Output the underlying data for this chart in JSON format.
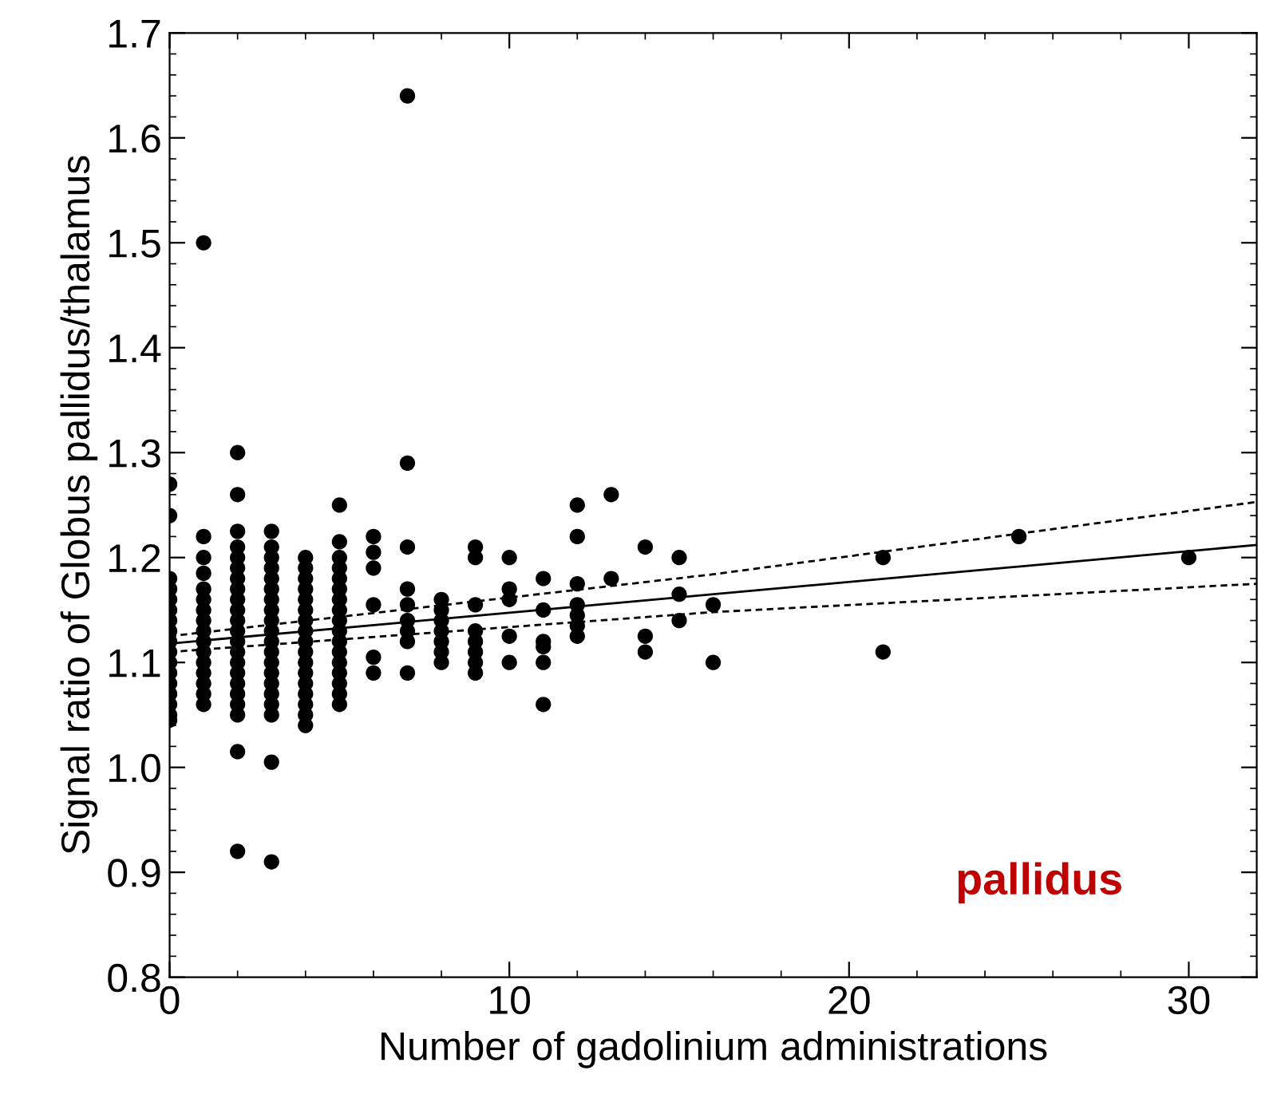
{
  "chart_data": {
    "type": "scatter",
    "xlabel": "Number of gadolinium administrations",
    "ylabel": "Signal ratio of Globus pallidus/thalamus",
    "xlim": [
      0,
      32
    ],
    "xticks": [
      0,
      10,
      20,
      30
    ],
    "ylim": [
      0.8,
      1.7
    ],
    "yticks": [
      {
        "value": 0.8,
        "label": "0.8"
      },
      {
        "value": 0.9,
        "label": "0.9"
      },
      {
        "value": 1.0,
        "label": "1.0"
      },
      {
        "value": 1.1,
        "label": "1.1"
      },
      {
        "value": 1.2,
        "label": "1.2"
      },
      {
        "value": 1.3,
        "label": "1.3"
      },
      {
        "value": 1.4,
        "label": "1.4"
      },
      {
        "value": 1.5,
        "label": "1.5"
      },
      {
        "value": 1.6,
        "label": "1.6"
      },
      {
        "value": 1.7,
        "label": "1.7"
      }
    ],
    "grid": false,
    "legend": false,
    "annotations": [
      "pallidus"
    ],
    "series": [
      {
        "color": "#000000",
        "marker": "circle",
        "x": [
          0,
          0,
          0,
          0,
          0,
          0,
          0,
          0,
          0,
          0,
          0,
          0,
          0,
          0,
          0,
          0,
          0,
          1,
          1,
          1,
          1,
          1,
          1,
          1,
          1,
          1,
          1,
          1,
          1,
          1,
          1,
          1,
          1,
          2,
          2,
          2,
          2,
          2,
          2,
          2,
          2,
          2,
          2,
          2,
          2,
          2,
          2,
          2,
          2,
          2,
          2,
          2,
          2,
          2,
          2,
          3,
          3,
          3,
          3,
          3,
          3,
          3,
          3,
          3,
          3,
          3,
          3,
          3,
          3,
          3,
          3,
          3,
          3,
          3,
          3,
          4,
          4,
          4,
          4,
          4,
          4,
          4,
          4,
          4,
          4,
          4,
          4,
          4,
          4,
          4,
          4,
          4,
          5,
          5,
          5,
          5,
          5,
          5,
          5,
          5,
          5,
          5,
          5,
          5,
          5,
          5,
          5,
          5,
          5,
          6,
          6,
          6,
          6,
          6,
          6,
          7,
          7,
          7,
          7,
          7,
          7,
          7,
          7,
          7,
          8,
          8,
          8,
          8,
          8,
          8,
          8,
          9,
          9,
          9,
          9,
          9,
          9,
          9,
          9,
          10,
          10,
          10,
          10,
          10,
          11,
          11,
          11,
          11,
          11,
          11,
          12,
          12,
          12,
          12,
          12,
          12,
          12,
          13,
          13,
          14,
          14,
          14,
          15,
          15,
          15,
          16,
          16,
          21,
          21,
          25,
          30
        ],
        "values": [
          1.27,
          1.24,
          1.18,
          1.17,
          1.16,
          1.15,
          1.14,
          1.13,
          1.12,
          1.11,
          1.1,
          1.09,
          1.08,
          1.07,
          1.06,
          1.05,
          1.045,
          1.5,
          1.22,
          1.2,
          1.185,
          1.17,
          1.16,
          1.15,
          1.14,
          1.13,
          1.12,
          1.11,
          1.1,
          1.09,
          1.08,
          1.07,
          1.06,
          1.3,
          1.26,
          1.225,
          1.21,
          1.2,
          1.19,
          1.18,
          1.17,
          1.16,
          1.15,
          1.14,
          1.13,
          1.12,
          1.11,
          1.1,
          1.09,
          1.08,
          1.07,
          1.06,
          1.05,
          1.015,
          0.92,
          1.225,
          1.21,
          1.2,
          1.19,
          1.18,
          1.17,
          1.16,
          1.15,
          1.14,
          1.13,
          1.12,
          1.11,
          1.1,
          1.09,
          1.08,
          1.07,
          1.06,
          1.05,
          1.005,
          0.91,
          1.2,
          1.19,
          1.18,
          1.17,
          1.16,
          1.15,
          1.14,
          1.13,
          1.12,
          1.11,
          1.1,
          1.09,
          1.08,
          1.07,
          1.06,
          1.05,
          1.04,
          1.25,
          1.215,
          1.2,
          1.19,
          1.18,
          1.17,
          1.16,
          1.15,
          1.14,
          1.13,
          1.12,
          1.11,
          1.1,
          1.09,
          1.08,
          1.07,
          1.06,
          1.22,
          1.205,
          1.19,
          1.155,
          1.105,
          1.09,
          1.64,
          1.29,
          1.21,
          1.17,
          1.155,
          1.14,
          1.13,
          1.12,
          1.09,
          1.16,
          1.15,
          1.14,
          1.13,
          1.12,
          1.11,
          1.1,
          1.21,
          1.2,
          1.155,
          1.13,
          1.12,
          1.11,
          1.1,
          1.09,
          1.2,
          1.17,
          1.16,
          1.125,
          1.1,
          1.18,
          1.15,
          1.12,
          1.115,
          1.1,
          1.06,
          1.25,
          1.22,
          1.175,
          1.155,
          1.145,
          1.135,
          1.125,
          1.26,
          1.18,
          1.21,
          1.125,
          1.11,
          1.2,
          1.165,
          1.14,
          1.155,
          1.1,
          1.2,
          1.11,
          1.22,
          1.2
        ]
      },
      {
        "type": "line",
        "color": "#000000",
        "line_style": "solid",
        "x": [
          0,
          32
        ],
        "values": [
          1.118,
          1.212
        ]
      },
      {
        "type": "line",
        "color": "#000000",
        "line_style": "dashed",
        "x": [
          0,
          16,
          32
        ],
        "values": [
          1.125,
          1.184,
          1.253
        ]
      },
      {
        "type": "line",
        "color": "#000000",
        "line_style": "dashed",
        "x": [
          0,
          16,
          32
        ],
        "values": [
          1.11,
          1.148,
          1.175
        ]
      }
    ]
  }
}
